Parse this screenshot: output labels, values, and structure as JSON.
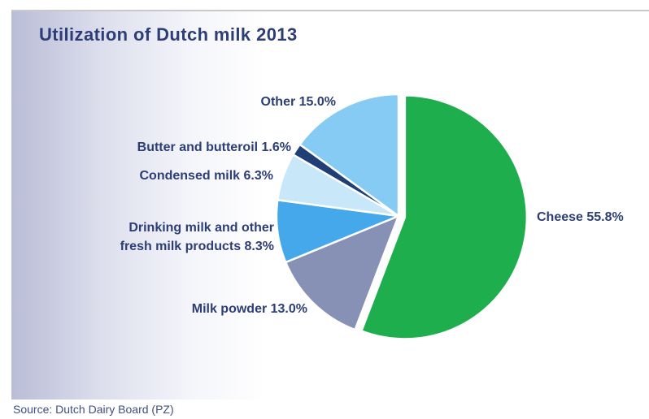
{
  "chart_data": {
    "type": "pie",
    "title": "Utilization of Dutch milk 2013",
    "slices": [
      {
        "label": "Cheese 55.8%",
        "name": "Cheese",
        "value": 55.8,
        "color": "#1fae4d"
      },
      {
        "label": "Milk powder 13.0%",
        "name": "Milk powder",
        "value": 13.0,
        "color": "#8791b5"
      },
      {
        "label": [
          "Drinking milk and other",
          "fresh milk products 8.3%"
        ],
        "name": "Drinking milk and other fresh milk products",
        "value": 8.3,
        "color": "#45a8ea"
      },
      {
        "label": "Condensed milk 6.3%",
        "name": "Condensed milk",
        "value": 6.3,
        "color": "#c8e7f8"
      },
      {
        "label": "Butter and butteroil 1.6%",
        "name": "Butter and butteroil",
        "value": 1.6,
        "color": "#1f3f76"
      },
      {
        "label": "Other 15.0%",
        "name": "Other",
        "value": 15.0,
        "color": "#86cbf3"
      }
    ],
    "exploded": "Cheese",
    "legend": "none"
  },
  "source": "Source: Dutch Dairy Board (PZ)"
}
